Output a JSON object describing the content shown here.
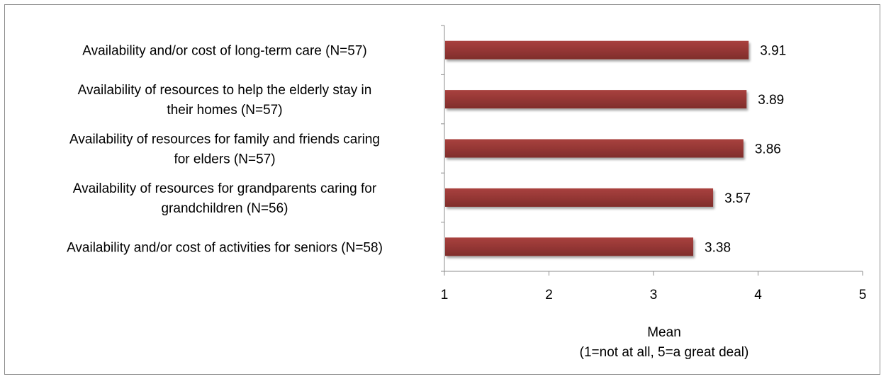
{
  "chart_data": {
    "type": "bar",
    "orientation": "horizontal",
    "categories": [
      "Availability and/or cost of long-term care (N=57)",
      "Availability of resources to help the elderly stay in their homes (N=57)",
      "Availability of resources for family and friends caring for elders (N=57)",
      "Availability of resources for grandparents caring for grandchildren (N=56)",
      "Availability and/or cost of activities for seniors (N=58)"
    ],
    "category_lines": [
      [
        "Availability and/or cost of long-term care (N=57)"
      ],
      [
        "Availability of resources to help the elderly stay in",
        "their homes (N=57)"
      ],
      [
        "Availability of resources for family and friends caring",
        "for elders (N=57)"
      ],
      [
        "Availability of resources for grandparents caring for",
        "grandchildren (N=56)"
      ],
      [
        "Availability and/or cost of activities for seniors (N=58)"
      ]
    ],
    "values": [
      3.91,
      3.89,
      3.86,
      3.57,
      3.38
    ],
    "value_labels": [
      "3.91",
      "3.89",
      "3.86",
      "3.57",
      "3.38"
    ],
    "xlim": [
      1,
      5
    ],
    "xticks": [
      "1",
      "2",
      "3",
      "4",
      "5"
    ],
    "xlabel_lines": [
      "Mean",
      "(1=not at all, 5=a great deal)"
    ],
    "bar_color": "#953735",
    "grid": false,
    "legend": "none"
  }
}
